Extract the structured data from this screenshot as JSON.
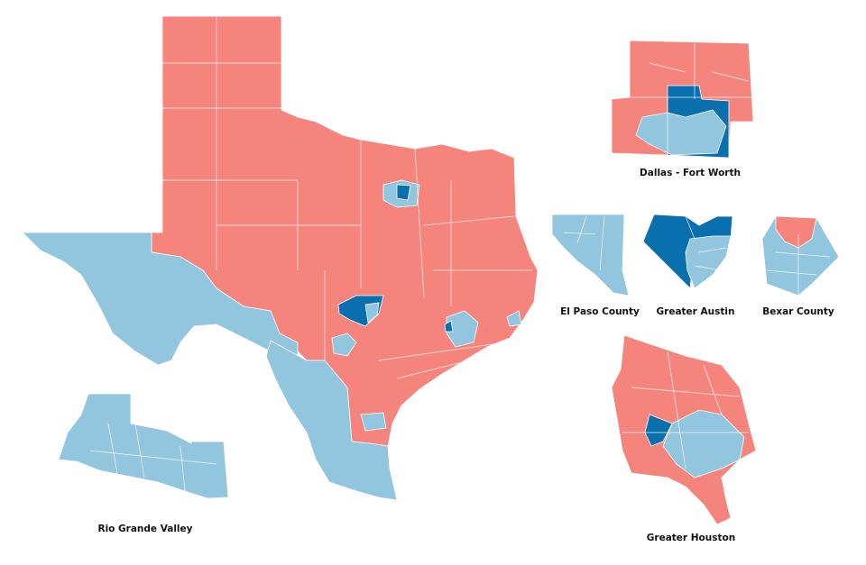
{
  "colors": {
    "republican": "#f4847c",
    "democrat_lean": "#92c5de",
    "democrat_strong": "#0a6fad"
  },
  "insets": [
    {
      "id": "dfw",
      "label": "Dallas - Fort Worth"
    },
    {
      "id": "elpaso",
      "label": "El Paso County"
    },
    {
      "id": "austin",
      "label": "Greater Austin"
    },
    {
      "id": "bexar",
      "label": "Bexar County"
    },
    {
      "id": "houston",
      "label": "Greater Houston"
    },
    {
      "id": "rgv",
      "label": "Rio Grande Valley"
    }
  ]
}
